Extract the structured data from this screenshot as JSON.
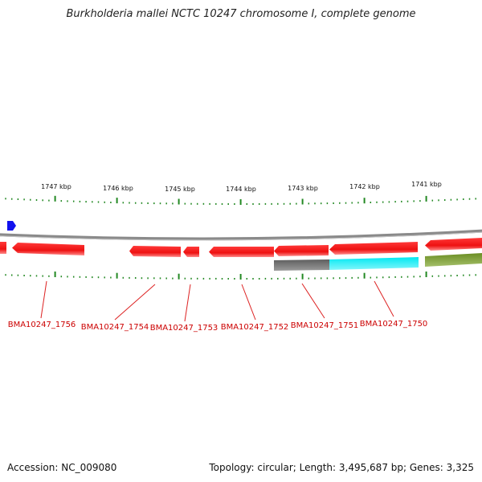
{
  "title": "Burkholderia mallei NCTC 10247 chromosome I, complete genome",
  "accession": "Accession: NC_009080",
  "summary": "Topology: circular; Length: 3,495,687 bp; Genes: 3,325",
  "colors": {
    "gene": "#ee1111",
    "gene_highlight": "#ff6666",
    "backbone": "#8a8a8a",
    "tick": "#228822",
    "label": "#cc0000",
    "marker": "#1111ee",
    "feature_gray": "#666666",
    "feature_cyan": "#00e5ee",
    "feature_olive": "#6b8e23"
  },
  "ticks": [
    {
      "label": "1747 kbp"
    },
    {
      "label": "1746 kbp"
    },
    {
      "label": "1745 kbp"
    },
    {
      "label": "1744 kbp"
    },
    {
      "label": "1743 kbp"
    },
    {
      "label": "1742 kbp"
    },
    {
      "label": "1741 kbp"
    }
  ],
  "genes": [
    {
      "label": "BMA10247_1756"
    },
    {
      "label": "BMA10247_1754"
    },
    {
      "label": "BMA10247_1753"
    },
    {
      "label": "BMA10247_1752"
    },
    {
      "label": "BMA10247_1751"
    },
    {
      "label": "BMA10247_1750"
    }
  ]
}
